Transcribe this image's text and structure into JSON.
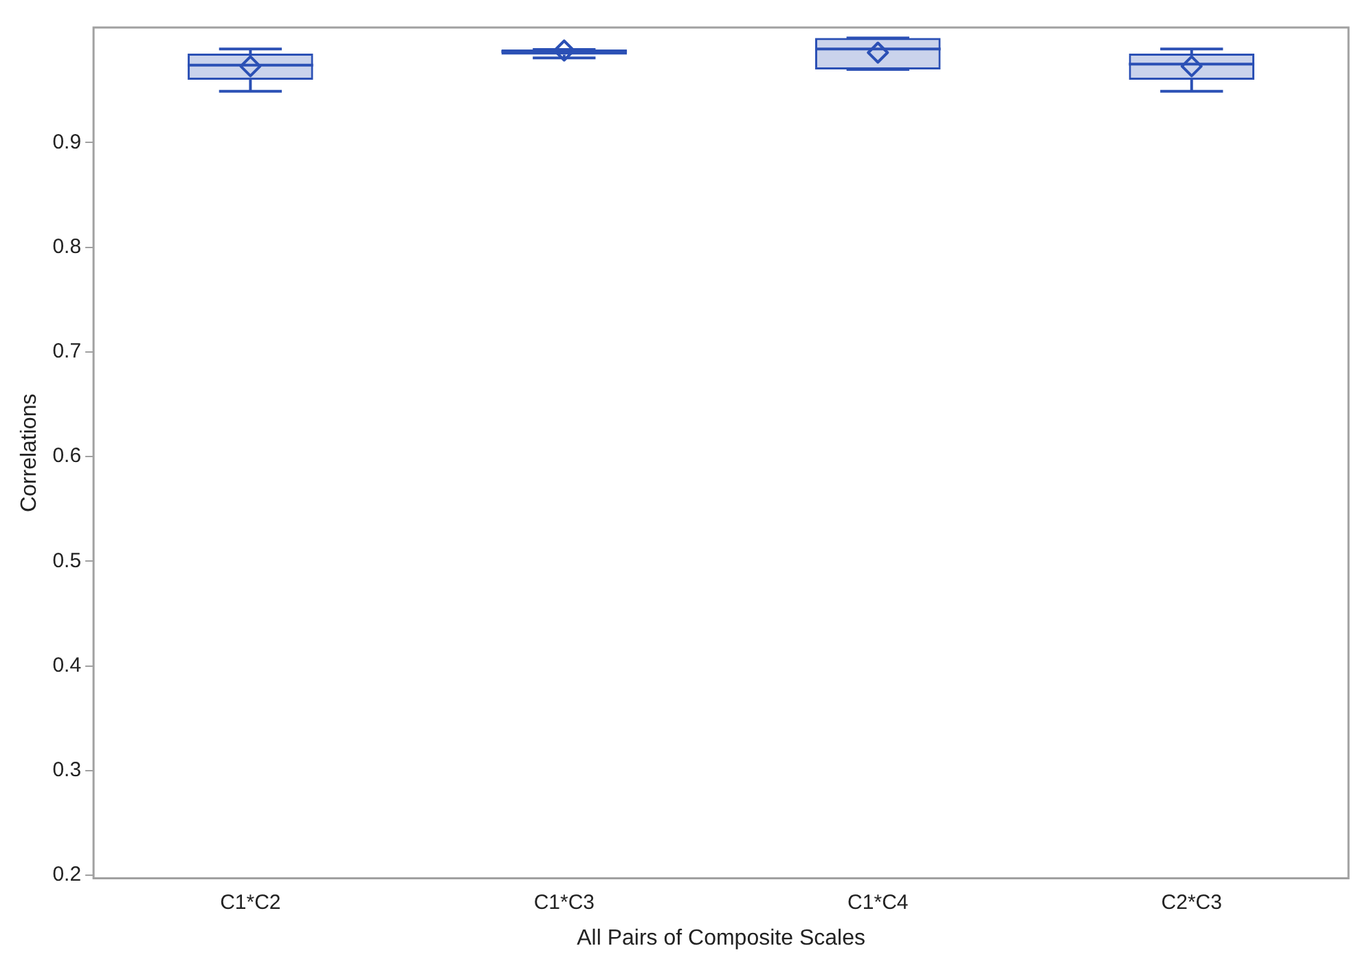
{
  "chart_data": {
    "type": "box",
    "xlabel": "All Pairs of Composite Scales",
    "ylabel": "Correlations",
    "categories": [
      "C1*C2",
      "C1*C3",
      "C1*C4",
      "C2*C3"
    ],
    "series": [
      {
        "color": "#2b50b5",
        "boxes": [
          {
            "low": 0.949,
            "q1": 0.96,
            "median": 0.974,
            "q3": 0.985,
            "high": 0.9895,
            "mean": 0.973
          },
          {
            "low": 0.981,
            "q1": 0.984,
            "median": 0.987,
            "q3": 0.989,
            "high": 0.989,
            "mean": 0.988
          },
          {
            "low": 0.97,
            "q1": 0.97,
            "median": 0.9895,
            "q3": 1.0,
            "high": 1.0,
            "mean": 0.986
          },
          {
            "low": 0.949,
            "q1": 0.96,
            "median": 0.975,
            "q3": 0.985,
            "high": 0.9895,
            "mean": 0.973
          }
        ]
      }
    ],
    "ylim": [
      0.197,
      1.01
    ],
    "yticks": [
      0.2,
      0.3,
      0.4,
      0.5,
      0.6,
      0.7,
      0.8,
      0.9
    ],
    "grid": false,
    "legend": false
  }
}
